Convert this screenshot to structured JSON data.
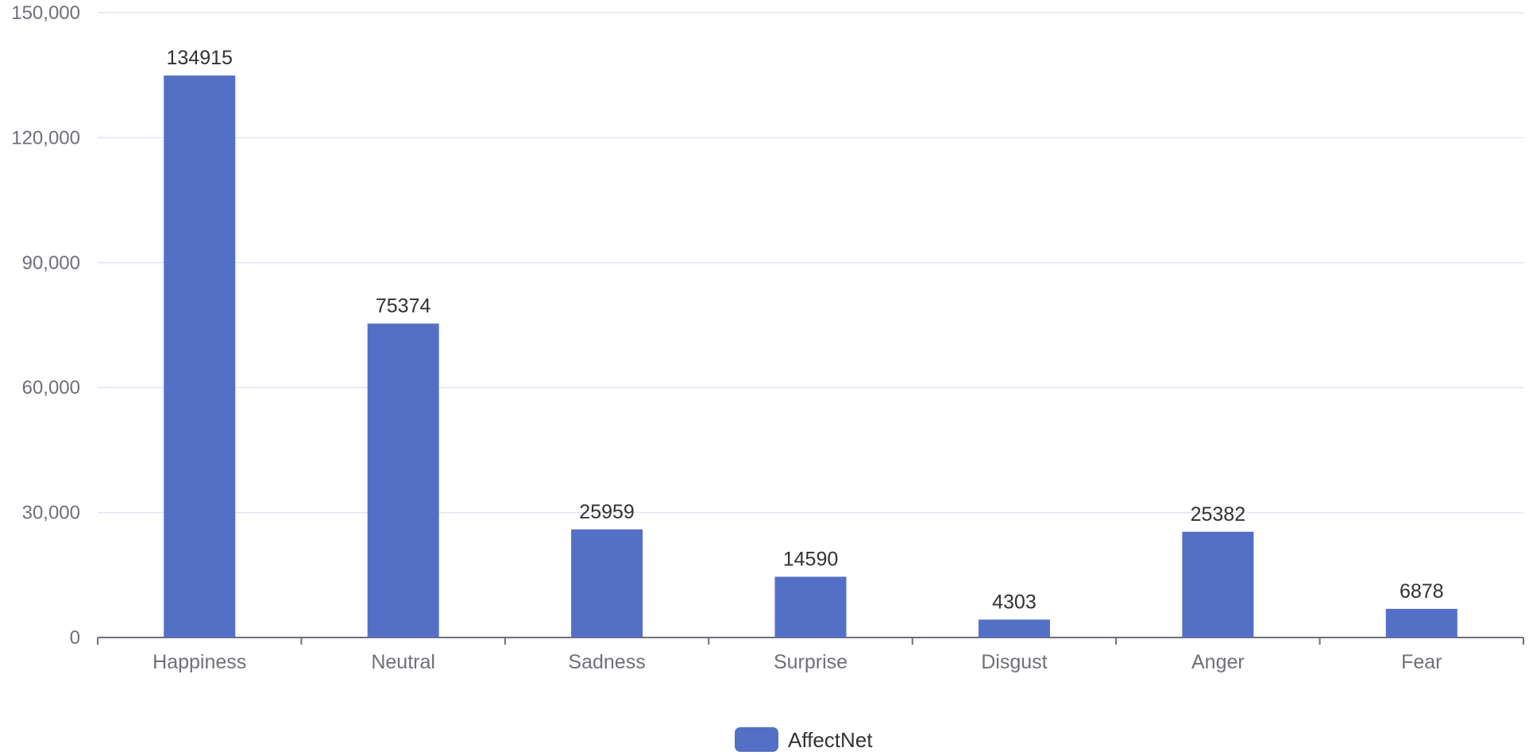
{
  "chart_data": {
    "type": "bar",
    "title": "",
    "xlabel": "",
    "ylabel": "",
    "categories": [
      "Happiness",
      "Neutral",
      "Sadness",
      "Surprise",
      "Disgust",
      "Anger",
      "Fear"
    ],
    "series": [
      {
        "name": "AffectNet",
        "values": [
          134915,
          75374,
          25959,
          14590,
          4303,
          25382,
          6878
        ],
        "data_labels": [
          "134915",
          "75374",
          "25959",
          "14590",
          "4303",
          "25382",
          "6878"
        ],
        "color": "#5470c6"
      }
    ],
    "ylim": [
      0,
      150000
    ],
    "yticks": [
      0,
      30000,
      60000,
      90000,
      120000,
      150000
    ],
    "ytick_labels": [
      "0",
      "30,000",
      "60,000",
      "90,000",
      "120,000",
      "150,000"
    ],
    "grid": true,
    "legend": {
      "position": "bottom-center",
      "entries": [
        "AffectNet"
      ]
    }
  },
  "colors": {
    "bar": "#5470c6",
    "grid": "#e0e6f1",
    "axis": "#6e7079"
  }
}
